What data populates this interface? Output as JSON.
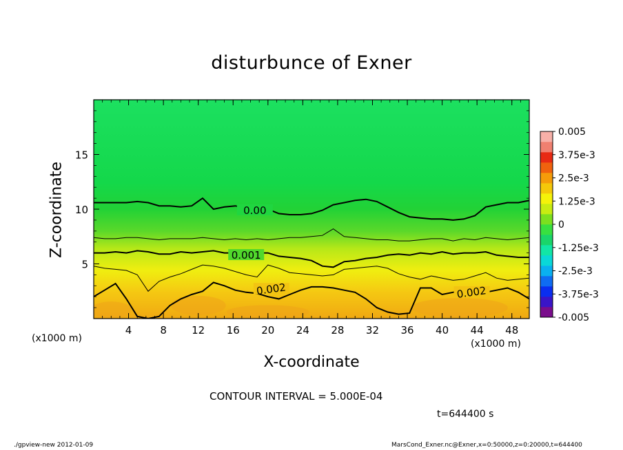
{
  "chart_data": {
    "type": "heatmap",
    "title": "disturbunce of Exner",
    "xlabel": "X-coordinate",
    "ylabel": "Z-coordinate",
    "x_unit": "(x1000 m)",
    "xlim": [
      0,
      50
    ],
    "ylim": [
      0,
      20
    ],
    "x_ticks": [
      "4",
      "8",
      "12",
      "16",
      "20",
      "24",
      "28",
      "32",
      "36",
      "40",
      "44",
      "48"
    ],
    "y_ticks": [
      "5",
      "10",
      "15"
    ],
    "colorbar_labels": [
      "0.005",
      "3.75e-3",
      "2.5e-3",
      "1.25e-3",
      "0",
      "-1.25e-3",
      "-2.5e-3",
      "-3.75e-3",
      "-0.005"
    ],
    "colorbar_range": [
      -0.005,
      0.005
    ],
    "contour_labels": [
      "0.00",
      "0.001",
      "0.002",
      "0.002"
    ],
    "contours": [
      {
        "level": 0.0,
        "z_levels": [
          10.6,
          10.6,
          10.6,
          10.6,
          10.7,
          10.6,
          10.3,
          10.3,
          10.2,
          10.3,
          11.0,
          10.0,
          10.2,
          10.3,
          10.1,
          10.0,
          10.0,
          9.6,
          9.5,
          9.5,
          9.6,
          9.9,
          10.4,
          10.6,
          10.8,
          10.9,
          10.7,
          10.2,
          9.7,
          9.3,
          9.2,
          9.1,
          9.1,
          9.0,
          9.1,
          9.4,
          10.2,
          10.4,
          10.6,
          10.6,
          10.8
        ]
      },
      {
        "level": 0.0005,
        "z_levels": [
          7.4,
          7.3,
          7.3,
          7.4,
          7.4,
          7.3,
          7.2,
          7.3,
          7.3,
          7.3,
          7.4,
          7.3,
          7.2,
          7.3,
          7.2,
          7.3,
          7.2,
          7.3,
          7.4,
          7.4,
          7.5,
          7.6,
          8.2,
          7.5,
          7.4,
          7.3,
          7.2,
          7.2,
          7.1,
          7.1,
          7.2,
          7.3,
          7.3,
          7.1,
          7.3,
          7.2,
          7.4,
          7.3,
          7.2,
          7.3,
          7.4
        ]
      },
      {
        "level": 0.001,
        "z_levels": [
          6.0,
          6.0,
          6.1,
          6.0,
          6.2,
          6.1,
          5.9,
          5.9,
          6.1,
          6.0,
          6.1,
          6.2,
          6.0,
          6.0,
          6.1,
          6.0,
          6.0,
          5.7,
          5.6,
          5.5,
          5.3,
          4.8,
          4.7,
          5.2,
          5.3,
          5.5,
          5.6,
          5.8,
          5.9,
          5.8,
          6.0,
          5.9,
          6.1,
          5.9,
          6.0,
          6.0,
          6.1,
          5.8,
          5.7,
          5.6,
          5.6
        ]
      },
      {
        "level": 0.0015,
        "z_levels": [
          4.8,
          4.6,
          4.5,
          4.4,
          4.0,
          2.5,
          3.4,
          3.8,
          4.1,
          4.5,
          4.9,
          4.8,
          4.6,
          4.3,
          4.0,
          3.8,
          4.9,
          4.6,
          4.2,
          4.1,
          4.0,
          3.9,
          4.0,
          4.5,
          4.6,
          4.7,
          4.8,
          4.6,
          4.1,
          3.8,
          3.6,
          3.9,
          3.7,
          3.5,
          3.6,
          3.9,
          4.2,
          3.7,
          3.5,
          3.6,
          3.7
        ]
      },
      {
        "level": 0.002,
        "z_levels": [
          2.0,
          2.6,
          3.2,
          1.8,
          0.2,
          0.0,
          0.2,
          1.2,
          1.8,
          2.2,
          2.5,
          3.3,
          3.0,
          2.6,
          2.4,
          2.3,
          2.0,
          1.8,
          2.2,
          2.6,
          2.9,
          2.9,
          2.8,
          2.6,
          2.4,
          1.8,
          1.0,
          0.6,
          0.4,
          0.5,
          2.8,
          2.8,
          2.2,
          2.4,
          2.6,
          2.5,
          2.4,
          2.6,
          2.8,
          2.4,
          1.8
        ]
      }
    ],
    "colors": {
      "colorbar": [
        "#7a0d8c",
        "#3a15c8",
        "#0a2ef0",
        "#0f6cf2",
        "#0ab0f0",
        "#0ad8d8",
        "#12e6a6",
        "#1ad56a",
        "#38e040",
        "#7ce01f",
        "#c8ec12",
        "#f5f20a",
        "#f5c80a",
        "#f59c0a",
        "#f0620e",
        "#e82a14",
        "#f08070",
        "#f7b0a8"
      ]
    }
  },
  "annotations": {
    "contour_interval": "CONTOUR INTERVAL = 5.000E-04",
    "time": "t=644400 s"
  },
  "footer": {
    "left": "./gpview-new   2012-01-09",
    "right": "MarsCond_Exner.nc@Exner,x=0:50000,z=0:20000,t=644400"
  }
}
